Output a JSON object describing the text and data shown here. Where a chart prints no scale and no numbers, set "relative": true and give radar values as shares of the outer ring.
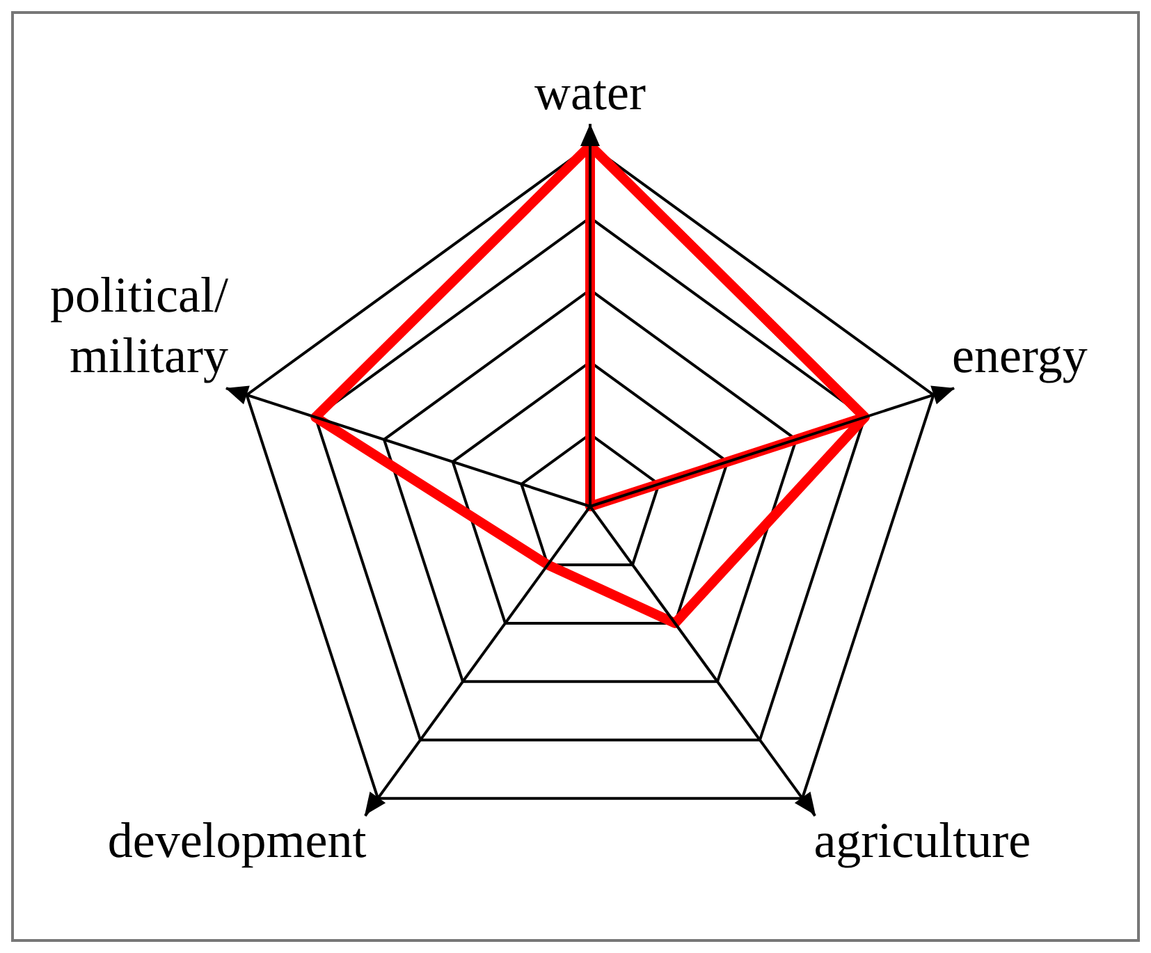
{
  "chart_data": {
    "type": "radar",
    "relative": true,
    "grid": true,
    "marker": "none",
    "line_style": "solid",
    "categories": [
      "water",
      "energy",
      "agriculture",
      "development",
      "political/\nmilitary"
    ],
    "series": [
      {
        "color": "#ff0000",
        "values": [
          1,
          0.8,
          0.4,
          0.2,
          0.8
        ]
      },
      {
        "color": "#ff0000",
        "values": [
          1,
          0.8,
          0,
          0,
          0
        ]
      }
    ]
  }
}
